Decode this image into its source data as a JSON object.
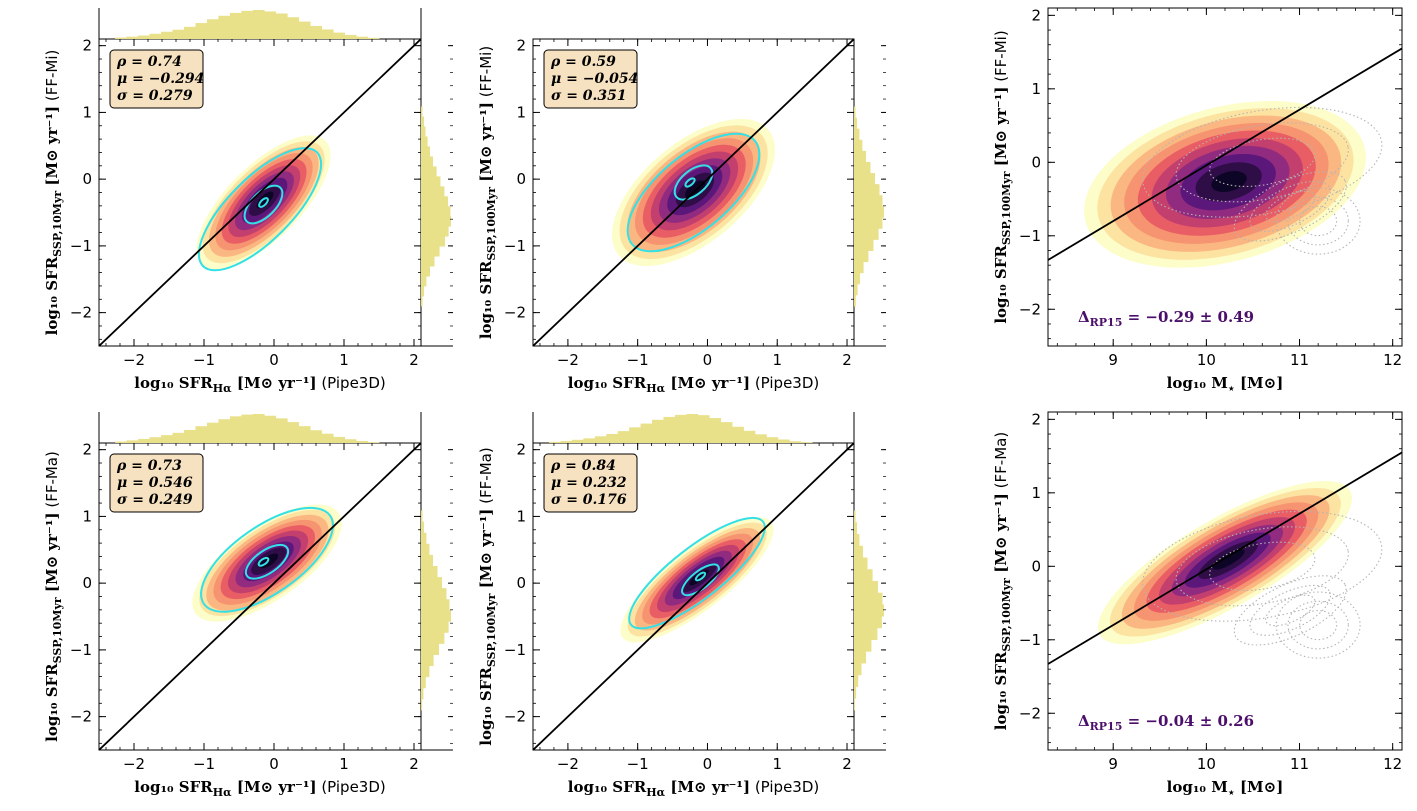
{
  "figure": {
    "colors": {
      "hist": "#e9e08a",
      "contour": "#33e0e6",
      "line": "#000000",
      "dotted": "#b4b4b4",
      "stats_box": "#f6e1c0",
      "delta": "#4b0f6b",
      "cmap": [
        "#fcfdbf",
        "#fde2a0",
        "#fbb47f",
        "#f6906f",
        "#e85a63",
        "#c13d6f",
        "#8e2a81",
        "#5a167a",
        "#2c0d45",
        "#0c0525"
      ]
    }
  },
  "chart_data": [
    {
      "id": "p00",
      "type": "scatter",
      "title": "",
      "xlabel_main": "log₁₀ SFR",
      "xlabel_sub": "Hα",
      "xlabel_rest": " [M⊙ yr⁻¹]",
      "xlabel_note": " (Pipe3D)",
      "ylabel_main": "log₁₀ SFR",
      "ylabel_sub": "SSP,10Myr",
      "ylabel_rest": " [M⊙ yr⁻¹]",
      "ylabel_note": " (FF-Mi)",
      "xlim": [
        -2.5,
        2.1
      ],
      "ylim": [
        -2.5,
        2.1
      ],
      "xticks": [
        -2,
        -1,
        0,
        1,
        2
      ],
      "yticks": [
        -2,
        -1,
        0,
        1,
        2
      ],
      "xtick_labels": [
        "−2",
        "−1",
        "0",
        "1",
        "2"
      ],
      "ytick_labels": [
        "−2",
        "−1",
        "0",
        "1",
        "2"
      ],
      "stats": {
        "rho": "ρ = 0.74",
        "mu": "μ = −0.294",
        "sigma": "σ = 0.279"
      },
      "kde_center": [
        -0.15,
        -0.35
      ],
      "kde_axes": [
        1.25,
        0.55
      ],
      "kde_angle": 45,
      "contours": [
        {
          "cx": -0.15,
          "cy": -0.35,
          "a": 0.08,
          "b": 0.04
        },
        {
          "cx": -0.15,
          "cy": -0.38,
          "a": 0.34,
          "b": 0.18
        },
        {
          "cx": -0.2,
          "cy": -0.45,
          "a": 1.15,
          "b": 0.47
        }
      ],
      "hist_top": [
        0.05,
        0.08,
        0.12,
        0.18,
        0.25,
        0.32,
        0.42,
        0.55,
        0.68,
        0.8,
        0.9,
        0.97,
        1.0,
        0.95,
        0.88,
        0.75,
        0.6,
        0.45,
        0.33,
        0.22,
        0.14,
        0.08,
        0.04
      ],
      "hist_right": [
        0.05,
        0.1,
        0.15,
        0.22,
        0.3,
        0.4,
        0.52,
        0.65,
        0.78,
        0.9,
        0.98,
        1.0,
        0.92,
        0.8,
        0.62,
        0.45,
        0.3,
        0.18,
        0.1,
        0.05
      ],
      "one_to_one": true
    },
    {
      "id": "p01",
      "type": "scatter",
      "xlabel_main": "log₁₀ SFR",
      "xlabel_sub": "Hα",
      "xlabel_rest": " [M⊙ yr⁻¹]",
      "xlabel_note": " (Pipe3D)",
      "ylabel_main": "log₁₀ SFR",
      "ylabel_sub": "SSP,100Myr",
      "ylabel_rest": " [M⊙ yr⁻¹]",
      "ylabel_note": " (FF-Mi)",
      "xlim": [
        -2.5,
        2.1
      ],
      "ylim": [
        -2.5,
        2.1
      ],
      "xticks": [
        -2,
        -1,
        0,
        1,
        2
      ],
      "yticks": [
        -2,
        -1,
        0,
        1,
        2
      ],
      "xtick_labels": [
        "−2",
        "−1",
        "0",
        "1",
        "2"
      ],
      "ytick_labels": [
        "−2",
        "−1",
        "0",
        "1",
        "2"
      ],
      "stats": {
        "rho": "ρ = 0.59",
        "mu": "μ = −0.054",
        "sigma": "σ = 0.351"
      },
      "kde_center": [
        -0.2,
        -0.2
      ],
      "kde_axes": [
        1.4,
        0.75
      ],
      "kde_angle": 40,
      "contours": [
        {
          "cx": -0.25,
          "cy": -0.05,
          "a": 0.08,
          "b": 0.04
        },
        {
          "cx": -0.2,
          "cy": -0.05,
          "a": 0.32,
          "b": 0.18
        },
        {
          "cx": -0.2,
          "cy": -0.2,
          "a": 1.15,
          "b": 0.55
        }
      ],
      "hist_right": [
        0.05,
        0.1,
        0.18,
        0.28,
        0.4,
        0.55,
        0.7,
        0.85,
        0.95,
        1.0,
        0.95,
        0.82,
        0.65,
        0.48,
        0.32,
        0.2,
        0.12,
        0.06
      ],
      "one_to_one": true
    },
    {
      "id": "p02",
      "type": "scatter",
      "xlabel_main": "log₁₀ M",
      "xlabel_sub": "⋆",
      "xlabel_rest": " [M⊙]",
      "xlabel_note": "",
      "ylabel_main": "log₁₀ SFR",
      "ylabel_sub": "SSP,100Myr",
      "ylabel_rest": " [M⊙ yr⁻¹]",
      "ylabel_note": " (FF-Mi)",
      "xlim": [
        8.3,
        12.1
      ],
      "ylim": [
        -2.5,
        2.1
      ],
      "xticks": [
        9,
        10,
        11,
        12
      ],
      "yticks": [
        -2,
        -1,
        0,
        1,
        2
      ],
      "xtick_labels": [
        "9",
        "10",
        "11",
        "12"
      ],
      "ytick_labels": [
        "−2",
        "−1",
        "0",
        "1",
        "2"
      ],
      "annotation": "ΔRP15 = −0.29 ± 0.49",
      "annotation_main": "Δ",
      "annotation_sub": "RP15",
      "annotation_rest": " = −0.29 ± 0.49",
      "kde_center": [
        10.2,
        -0.3
      ],
      "kde_axes": [
        1.55,
        1.05
      ],
      "kde_angle": 15,
      "line": {
        "x": [
          8.3,
          12.1
        ],
        "y": [
          -1.33,
          1.55
        ]
      },
      "contours_dotted": true
    },
    {
      "id": "p10",
      "type": "scatter",
      "xlabel_main": "log₁₀ SFR",
      "xlabel_sub": "Hα",
      "xlabel_rest": " [M⊙ yr⁻¹]",
      "xlabel_note": " (Pipe3D)",
      "ylabel_main": "log₁₀ SFR",
      "ylabel_sub": "SSP,10Myr",
      "ylabel_rest": " [M⊙ yr⁻¹]",
      "ylabel_note": " (FF-Ma)",
      "xlim": [
        -2.5,
        2.1
      ],
      "ylim": [
        -2.5,
        2.1
      ],
      "xticks": [
        -2,
        -1,
        0,
        1,
        2
      ],
      "yticks": [
        -2,
        -1,
        0,
        1,
        2
      ],
      "xtick_labels": [
        "−2",
        "−1",
        "0",
        "1",
        "2"
      ],
      "ytick_labels": [
        "−2",
        "−1",
        "0",
        "1",
        "2"
      ],
      "stats": {
        "rho": "ρ = 0.73",
        "mu": "μ = 0.546",
        "sigma": "σ = 0.249"
      },
      "kde_center": [
        -0.1,
        0.3
      ],
      "kde_axes": [
        1.25,
        0.55
      ],
      "kde_angle": 35,
      "contours": [
        {
          "cx": -0.15,
          "cy": 0.32,
          "a": 0.08,
          "b": 0.04
        },
        {
          "cx": -0.1,
          "cy": 0.32,
          "a": 0.35,
          "b": 0.17
        },
        {
          "cx": -0.1,
          "cy": 0.35,
          "a": 1.1,
          "b": 0.5
        }
      ],
      "hist_top": [
        0.05,
        0.09,
        0.14,
        0.2,
        0.27,
        0.35,
        0.45,
        0.58,
        0.7,
        0.82,
        0.92,
        0.98,
        1.0,
        0.94,
        0.85,
        0.72,
        0.58,
        0.44,
        0.32,
        0.21,
        0.13,
        0.07,
        0.03
      ],
      "hist_right": [
        0.05,
        0.1,
        0.18,
        0.28,
        0.4,
        0.55,
        0.7,
        0.85,
        0.95,
        1.0,
        0.92,
        0.78,
        0.6,
        0.42,
        0.28,
        0.16,
        0.08,
        0.04
      ],
      "one_to_one": true
    },
    {
      "id": "p11",
      "type": "scatter",
      "xlabel_main": "log₁₀ SFR",
      "xlabel_sub": "Hα",
      "xlabel_rest": " [M⊙ yr⁻¹]",
      "xlabel_note": " (Pipe3D)",
      "ylabel_main": "log₁₀ SFR",
      "ylabel_sub": "SSP,100Myr",
      "ylabel_rest": " [M⊙ yr⁻¹]",
      "ylabel_note": " (FF-Ma)",
      "xlim": [
        -2.5,
        2.1
      ],
      "ylim": [
        -2.5,
        2.1
      ],
      "xticks": [
        -2,
        -1,
        0,
        1,
        2
      ],
      "yticks": [
        -2,
        -1,
        0,
        1,
        2
      ],
      "xtick_labels": [
        "−2",
        "−1",
        "0",
        "1",
        "2"
      ],
      "ytick_labels": [
        "−2",
        "−1",
        "0",
        "1",
        "2"
      ],
      "stats": {
        "rho": "ρ = 0.84",
        "mu": "μ = 0.232",
        "sigma": "σ = 0.176"
      },
      "kde_center": [
        -0.15,
        0.05
      ],
      "kde_axes": [
        1.35,
        0.45
      ],
      "kde_angle": 38,
      "contours": [
        {
          "cx": -0.1,
          "cy": 0.1,
          "a": 0.08,
          "b": 0.035
        },
        {
          "cx": -0.1,
          "cy": 0.05,
          "a": 0.32,
          "b": 0.13
        },
        {
          "cx": -0.15,
          "cy": 0.15,
          "a": 1.2,
          "b": 0.38
        }
      ],
      "hist_top": [
        0.04,
        0.07,
        0.11,
        0.16,
        0.23,
        0.31,
        0.41,
        0.54,
        0.67,
        0.8,
        0.9,
        0.97,
        1.0,
        0.96,
        0.86,
        0.72,
        0.56,
        0.42,
        0.3,
        0.2,
        0.12,
        0.06,
        0.03
      ],
      "hist_right": [
        0.05,
        0.1,
        0.18,
        0.3,
        0.45,
        0.62,
        0.8,
        0.95,
        1.0,
        0.93,
        0.78,
        0.58,
        0.4,
        0.25,
        0.14,
        0.07,
        0.03
      ],
      "one_to_one": true
    },
    {
      "id": "p12",
      "type": "scatter",
      "xlabel_main": "log₁₀ M",
      "xlabel_sub": "⋆",
      "xlabel_rest": " [M⊙]",
      "xlabel_note": "",
      "ylabel_main": "log₁₀ SFR",
      "ylabel_sub": "SSP,100Myr",
      "ylabel_rest": " [M⊙ yr⁻¹]",
      "ylabel_note": " (FF-Ma)",
      "xlim": [
        8.3,
        12.1
      ],
      "ylim": [
        -2.5,
        2.1
      ],
      "xticks": [
        9,
        10,
        11,
        12
      ],
      "yticks": [
        -2,
        -1,
        0,
        1,
        2
      ],
      "xtick_labels": [
        "9",
        "10",
        "11",
        "12"
      ],
      "ytick_labels": [
        "−2",
        "−1",
        "0",
        "1",
        "2"
      ],
      "annotation": "ΔRP15 = −0.04 ± 0.26",
      "annotation_main": "Δ",
      "annotation_sub": "RP15",
      "annotation_rest": " = −0.04 ± 0.26",
      "kde_center": [
        10.2,
        0.05
      ],
      "kde_axes": [
        1.55,
        0.6
      ],
      "kde_angle": 30,
      "line": {
        "x": [
          8.3,
          12.1
        ],
        "y": [
          -1.33,
          1.55
        ]
      },
      "contours_dotted": true
    }
  ]
}
